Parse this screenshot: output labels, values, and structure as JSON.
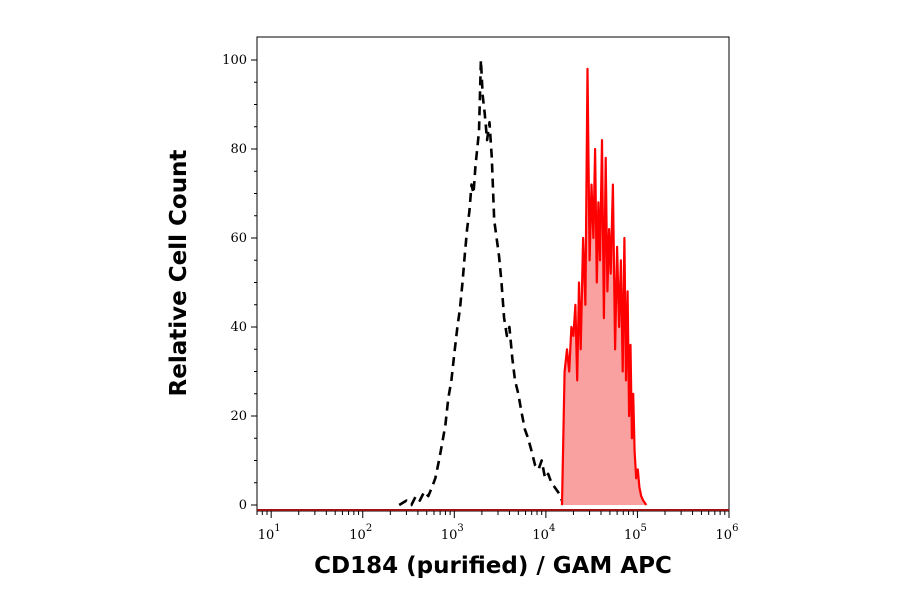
{
  "chart_data": {
    "type": "area",
    "xlabel": "CD184 (purified) / GAM APC",
    "ylabel": "Relative Cell Count",
    "x_scale": "log",
    "xlim": [
      7,
      1000000
    ],
    "ylim": [
      0,
      100
    ],
    "x_ticks": [
      {
        "base": "10",
        "exp": "1",
        "value": 10
      },
      {
        "base": "10",
        "exp": "2",
        "value": 100
      },
      {
        "base": "10",
        "exp": "3",
        "value": 1000
      },
      {
        "base": "10",
        "exp": "4",
        "value": 10000
      },
      {
        "base": "10",
        "exp": "5",
        "value": 100000
      },
      {
        "base": "10",
        "exp": "6",
        "value": 1000000
      }
    ],
    "y_ticks": [
      "0",
      "20",
      "40",
      "60",
      "80",
      "100"
    ],
    "grid": false,
    "legend": "none",
    "series": [
      {
        "style": "dashed",
        "color": "#000000",
        "x": [
          250,
          300,
          340,
          380,
          420,
          470,
          520,
          570,
          620,
          680,
          740,
          800,
          860,
          930,
          1000,
          1080,
          1150,
          1230,
          1300,
          1380,
          1460,
          1540,
          1620,
          1700,
          1780,
          1860,
          1950,
          2040,
          2150,
          2280,
          2420,
          2570,
          2730,
          2900,
          3080,
          3280,
          3500,
          3750,
          4000,
          4300,
          4600,
          5000,
          5400,
          5900,
          6400,
          7000,
          7600,
          8300,
          9000,
          9800,
          10600,
          11500,
          12500,
          13500,
          14500,
          15500
        ],
        "y": [
          0,
          1,
          0,
          2,
          1,
          3,
          2,
          4,
          6,
          10,
          14,
          18,
          24,
          28,
          34,
          40,
          44,
          50,
          56,
          62,
          66,
          72,
          70,
          76,
          80,
          84,
          100,
          92,
          88,
          82,
          86,
          78,
          64,
          60,
          56,
          50,
          42,
          38,
          40,
          33,
          28,
          25,
          21,
          17,
          15,
          12,
          9,
          8,
          10,
          6,
          7,
          5,
          4,
          3,
          2,
          0
        ]
      },
      {
        "style": "filled",
        "color": "#ff0000",
        "fill": "#f9a0a0",
        "x": [
          15000,
          16000,
          17000,
          18000,
          19000,
          20000,
          21000,
          22000,
          23000,
          24000,
          25500,
          27000,
          28500,
          30000,
          31500,
          33000,
          34500,
          36000,
          37500,
          39000,
          41000,
          43000,
          45000,
          47000,
          49000,
          51000,
          54000,
          57000,
          60000,
          63000,
          66000,
          69000,
          72000,
          75000,
          78000,
          81000,
          84000,
          87000,
          90000,
          93000,
          97000,
          101000,
          105000,
          110000,
          116000,
          125000
        ],
        "y": [
          0,
          30,
          35,
          30,
          40,
          38,
          45,
          28,
          50,
          35,
          60,
          45,
          98,
          55,
          72,
          60,
          80,
          50,
          68,
          55,
          82,
          42,
          78,
          48,
          62,
          52,
          72,
          35,
          58,
          40,
          55,
          30,
          60,
          28,
          48,
          20,
          36,
          15,
          25,
          12,
          6,
          8,
          4,
          2,
          1,
          0
        ]
      }
    ]
  }
}
